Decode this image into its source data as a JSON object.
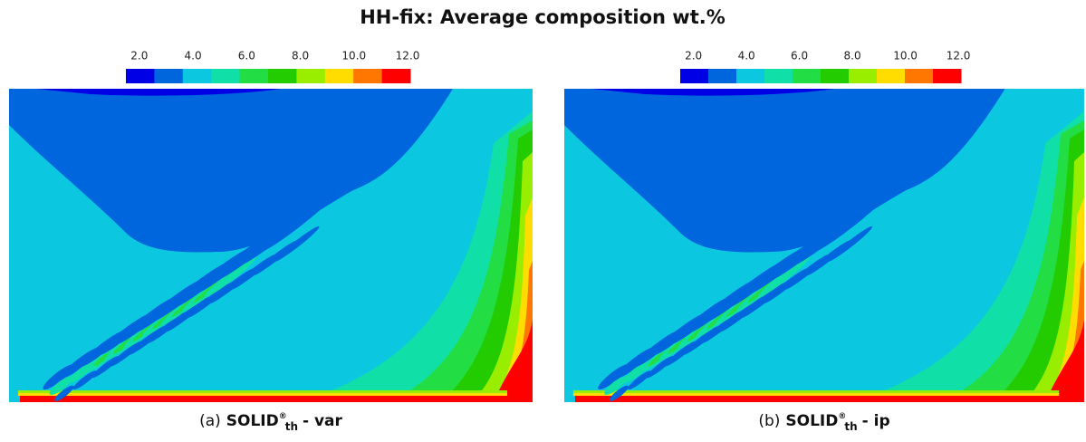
{
  "title": "HH-fix: Average composition wt.%",
  "panels": [
    {
      "colorbar": {
        "clim": [
          1.5,
          12.1
        ],
        "colors": [
          "#0000e6",
          "#0066dd",
          "#0bc8e0",
          "#10e0a8",
          "#22dd44",
          "#22cc00",
          "#99ee00",
          "#ffdd00",
          "#ff7700",
          "#ff0000"
        ],
        "ticks": [
          {
            "value": 2,
            "label": "2.0"
          },
          {
            "value": 4,
            "label": "4.0"
          },
          {
            "value": 6,
            "label": "6.0"
          },
          {
            "value": 8,
            "label": "8.0"
          },
          {
            "value": 10,
            "label": "10.0"
          },
          {
            "value": 12,
            "label": "12.0"
          }
        ]
      },
      "caption": {
        "prefix": "(a)",
        "name": "SOLID",
        "sup": "®",
        "sub": "th",
        "suffix": "- var"
      }
    },
    {
      "colorbar": {
        "clim": [
          1.5,
          12.1
        ],
        "colors": [
          "#0000e6",
          "#0066dd",
          "#0bc8e0",
          "#10e0a8",
          "#22dd44",
          "#22cc00",
          "#99ee00",
          "#ffdd00",
          "#ff7700",
          "#ff0000"
        ],
        "ticks": [
          {
            "value": 2,
            "label": "2.0"
          },
          {
            "value": 4,
            "label": "4.0"
          },
          {
            "value": 6,
            "label": "6.0"
          },
          {
            "value": 8,
            "label": "8.0"
          },
          {
            "value": 10,
            "label": "10.0"
          },
          {
            "value": 12,
            "label": "12.0"
          }
        ]
      },
      "caption": {
        "prefix": "(b)",
        "name": "SOLID",
        "sup": "®",
        "sub": "th",
        "suffix": "- ip"
      }
    }
  ]
}
